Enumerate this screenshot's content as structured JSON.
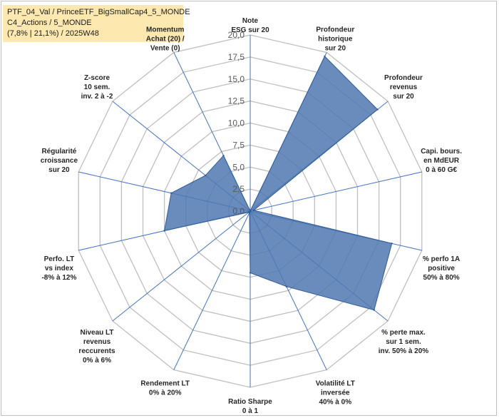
{
  "title": {
    "line1": "PTF_04_Val / PrinceETF_BigSmallCap4_5_MONDE",
    "line2": "C4_Actions / 5_MONDE",
    "line3": "(7,8% | 21,1%) / 2025W48"
  },
  "colors": {
    "fill": "#4f78b0",
    "stroke": "#2e5b96",
    "grid": "#bfbfbf",
    "spoke": "#4472c4",
    "title_bg": "#fde9b0",
    "momentum_label": "#a08a3c"
  },
  "chart_data": {
    "type": "radar",
    "rmin": 0,
    "rmax": 20,
    "ticks": [
      "0,0",
      "2,5",
      "5,0",
      "7,5",
      "10,0",
      "12,5",
      "15,0",
      "17,5",
      "20,0"
    ],
    "axes": [
      {
        "label": [
          "Note",
          "ESG sur 20"
        ],
        "value": 0
      },
      {
        "label": [
          "Profondeur",
          "historique",
          "sur 20"
        ],
        "value": 19.5
      },
      {
        "label": [
          "Profondeur",
          "revenus",
          "sur 20"
        ],
        "value": 18.5
      },
      {
        "label": [
          "Capi. bours.",
          "en MdEUR",
          "0 à 60 G€"
        ],
        "value": 0.4
      },
      {
        "label": [
          "% perfo 1A",
          "positive",
          "50% à 80%"
        ],
        "value": 16.5
      },
      {
        "label": [
          "% perte max.",
          "sur 1 sem.",
          "inv. 50% à 20%"
        ],
        "value": 18.0
      },
      {
        "label": [
          "Volatilité LT",
          "inversée",
          "40% à 0%"
        ],
        "value": 9.5
      },
      {
        "label": [
          "Ratio Sharpe",
          "0 à 1"
        ],
        "value": 7.0
      },
      {
        "label": [
          "Rendement LT",
          "0% à 20%"
        ],
        "value": 0.2
      },
      {
        "label": [
          "Niveau LT",
          "revenus",
          "reccurents",
          "0% à 6%"
        ],
        "value": 0.2
      },
      {
        "label": [
          "Perfo. LT",
          "vs index",
          "-8% à 12%"
        ],
        "value": 10.0
      },
      {
        "label": [
          "Régularité",
          "croissance",
          "sur 20"
        ],
        "value": 9.2
      },
      {
        "label": [
          "Z-score",
          "10 sem.",
          "inv. 2 à -2"
        ],
        "value": 6.5
      },
      {
        "label": [
          "Momentum",
          "Achat (20) /",
          "Vente (0)"
        ],
        "value": 7.0
      }
    ]
  }
}
